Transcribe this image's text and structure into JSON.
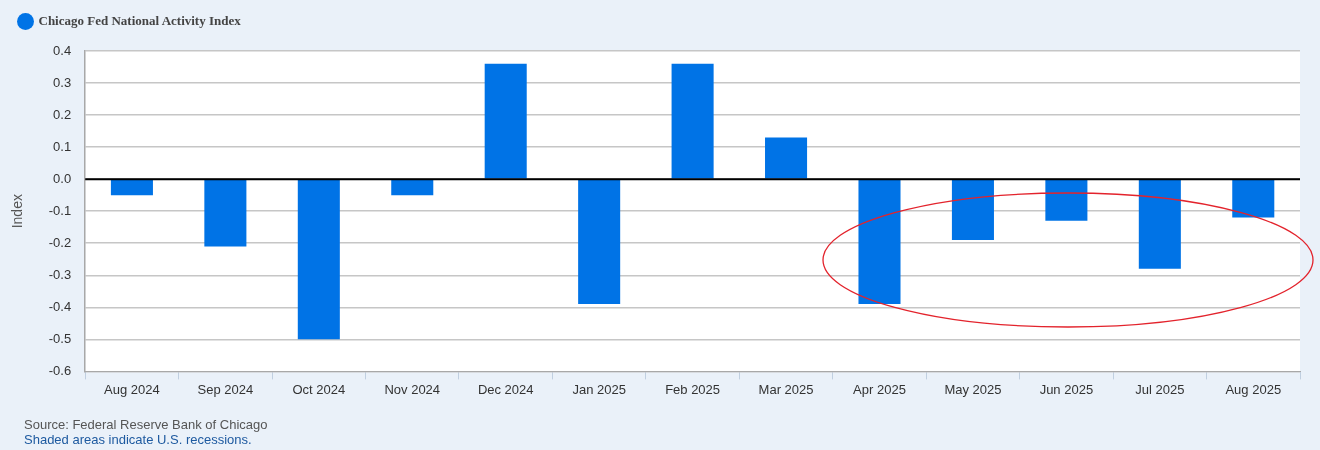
{
  "chart_data": {
    "type": "bar",
    "categories": [
      "Aug 2024",
      "Sep 2024",
      "Oct 2024",
      "Nov 2024",
      "Dec 2024",
      "Jan 2025",
      "Feb 2025",
      "Mar 2025",
      "Apr 2025",
      "May 2025",
      "Jun 2025",
      "Jul 2025",
      "Aug 2025"
    ],
    "series": [
      {
        "name": "Chicago Fed National Activity Index",
        "color": "#0073e6",
        "values": [
          -0.05,
          -0.21,
          -0.5,
          -0.05,
          0.36,
          -0.39,
          0.36,
          0.13,
          -0.39,
          -0.19,
          -0.13,
          -0.28,
          -0.12
        ]
      }
    ],
    "ylabel": "Index",
    "ylim": [
      -0.6,
      0.4
    ],
    "yticks": [
      -0.6,
      -0.5,
      -0.4,
      -0.3,
      -0.2,
      -0.1,
      {
        "value": 0,
        "label": "0.0"
      },
      0.1,
      0.2,
      0.3,
      0.4
    ],
    "grid": "y",
    "legend": "top left",
    "ref_lines": [
      {
        "axis": "y",
        "value": 0,
        "color": "#000000"
      }
    ],
    "annotations": [
      "Source: Federal Reserve Bank of Chicago",
      "Shaded areas indicate U.S. recessions."
    ]
  }
}
